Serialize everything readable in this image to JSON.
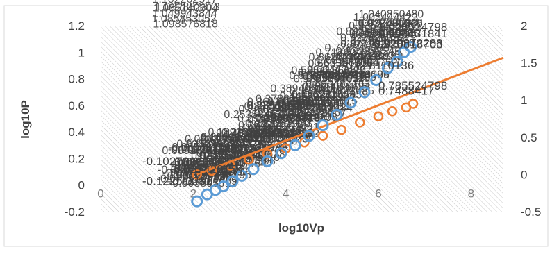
{
  "chart_data": {
    "type": "scatter",
    "title": "",
    "xlabel": "log10Vp",
    "ylabel": "log10P",
    "xlim": [
      0,
      8.7
    ],
    "ylim_left": [
      -0.2,
      1.2
    ],
    "ylim_right": [
      -0.5,
      2
    ],
    "xticks": [
      0,
      2,
      4,
      6,
      8
    ],
    "yticks_left": [
      -0.2,
      0,
      0.2,
      0.4,
      0.6,
      0.8,
      1,
      1.2
    ],
    "yticks_right": [
      -0.5,
      0,
      0.5,
      1,
      1.5,
      2
    ],
    "grid": "diagonal hatch",
    "legend": "none",
    "series": [
      {
        "axis": "left",
        "color": "#5b9bd5",
        "marker": "circle",
        "points": [
          [
            2.08,
            -0.1225
          ],
          [
            2.3,
            -0.07
          ],
          [
            2.48,
            -0.037
          ],
          [
            2.65,
            -0.01
          ],
          [
            2.85,
            0.03
          ],
          [
            3.05,
            0.07
          ],
          [
            3.3,
            0.12
          ],
          [
            3.6,
            0.18
          ],
          [
            3.9,
            0.24
          ],
          [
            4.2,
            0.3
          ],
          [
            4.5,
            0.37
          ],
          [
            4.8,
            0.45
          ],
          [
            5.1,
            0.53
          ],
          [
            5.4,
            0.62
          ],
          [
            5.7,
            0.7
          ],
          [
            5.95,
            0.79
          ],
          [
            6.2,
            0.88
          ],
          [
            6.4,
            0.93
          ],
          [
            6.55,
            1.0
          ],
          [
            6.7,
            1.04
          ]
        ]
      },
      {
        "axis": "right",
        "color": "#ed7d31",
        "marker": "circle",
        "points": [
          [
            2.08,
            0.0
          ],
          [
            2.4,
            0.05
          ],
          [
            2.8,
            0.12
          ],
          [
            3.2,
            0.2
          ],
          [
            3.6,
            0.28
          ],
          [
            4.0,
            0.35
          ],
          [
            4.4,
            0.43
          ],
          [
            4.8,
            0.52
          ],
          [
            5.2,
            0.6
          ],
          [
            5.6,
            0.7
          ],
          [
            6.0,
            0.78
          ],
          [
            6.3,
            0.85
          ],
          [
            6.6,
            0.9
          ],
          [
            6.75,
            0.95
          ]
        ],
        "trendline": [
          [
            2.08,
            0.0
          ],
          [
            8.7,
            1.57
          ]
        ]
      }
    ],
    "annotations": [
      {
        "text": "1.028524798",
        "x": 6.0,
        "y": 1.16
      },
      {
        "text": "0.993431841",
        "x": 6.0,
        "y": 1.11
      },
      {
        "text": "0.920872288",
        "x": 5.9,
        "y": 1.04
      },
      {
        "text": "0.920818703",
        "x": 5.9,
        "y": 1.03
      },
      {
        "text": "0.828110136",
        "x": 5.3,
        "y": 0.87
      },
      {
        "text": "-0.102702904",
        "x": 0.9,
        "y": 0.15
      },
      {
        "text": "-0.037428154",
        "x": 1.5,
        "y": 0.09
      },
      {
        "text": "-0.1225/0281",
        "x": 0.9,
        "y": 0.0
      },
      {
        "text": "0.785524798",
        "x": 6.0,
        "y": 0.72
      },
      {
        "text": "0.7488417",
        "x": 6.0,
        "y": 0.68
      }
    ]
  }
}
